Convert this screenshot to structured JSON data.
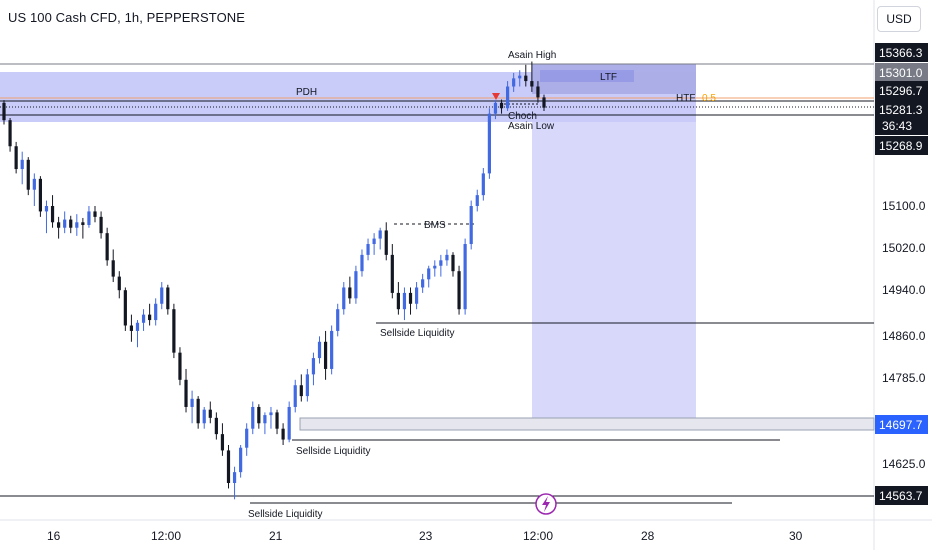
{
  "header": {
    "title": "US 100 Cash CFD, 1h, PEPPERSTONE",
    "currency": "USD"
  },
  "chart_data": {
    "type": "candlestick",
    "symbol": "US 100 Cash CFD",
    "timeframe": "1h",
    "exchange": "PEPPERSTONE",
    "y_ticks": [
      15100.0,
      15020.0,
      14940.0,
      14860.0,
      14785.0,
      14625.0
    ],
    "x_ticks": [
      "16",
      "12:00",
      "21",
      "23",
      "12:00",
      "28",
      "30"
    ],
    "price_tags": [
      {
        "value": "15366.3",
        "style": "dark"
      },
      {
        "value": "15301.0",
        "style": "gray"
      },
      {
        "value": "15296.7",
        "style": "dark"
      },
      {
        "value": "15281.3",
        "style": "dark"
      },
      {
        "value": "36:43",
        "style": "dark"
      },
      {
        "value": "15268.9",
        "style": "dark"
      },
      {
        "value": "14697.7",
        "style": "blue"
      },
      {
        "value": "14563.7",
        "style": "dark"
      }
    ],
    "annotations": {
      "asian_high": "Asain High",
      "asian_low": "Asain Low",
      "choch": "Choch",
      "ltf": "LTF",
      "htf": "HTF",
      "fib": "0.5",
      "pdh": "PDH",
      "bms": "BMS",
      "sellside_1": "Sellside Liquidity",
      "sellside_2": "Sellside Liquidity",
      "sellside_3": "Sellside Liquidity"
    },
    "colors": {
      "zone": "#b2b5f7",
      "zone_light": "#c8caf8",
      "bull": "#4169e1",
      "bear": "#131722",
      "pdh_line": "#f0a070",
      "fib": "#f7a600",
      "tag_blue": "#2962ff",
      "event_icon": "#9c27b0"
    },
    "candles": [
      [
        15290,
        15295,
        15250,
        15258
      ],
      [
        15258,
        15262,
        15200,
        15210
      ],
      [
        15210,
        15218,
        15160,
        15168
      ],
      [
        15168,
        15200,
        15140,
        15185
      ],
      [
        15185,
        15190,
        15120,
        15130
      ],
      [
        15130,
        15160,
        15100,
        15150
      ],
      [
        15150,
        15155,
        15080,
        15090
      ],
      [
        15090,
        15110,
        15050,
        15100
      ],
      [
        15100,
        15120,
        15060,
        15070
      ],
      [
        15070,
        15080,
        15040,
        15060
      ],
      [
        15060,
        15090,
        15050,
        15075
      ],
      [
        15075,
        15082,
        15050,
        15060
      ],
      [
        15060,
        15085,
        15045,
        15070
      ],
      [
        15070,
        15078,
        15040,
        15065
      ],
      [
        15065,
        15100,
        15060,
        15090
      ],
      [
        15090,
        15100,
        15070,
        15080
      ],
      [
        15080,
        15090,
        15040,
        15050
      ],
      [
        15050,
        15060,
        14990,
        15000
      ],
      [
        15000,
        15020,
        14960,
        14970
      ],
      [
        14970,
        14980,
        14930,
        14945
      ],
      [
        14945,
        14950,
        14870,
        14880
      ],
      [
        14880,
        14900,
        14850,
        14870
      ],
      [
        14870,
        14890,
        14840,
        14885
      ],
      [
        14885,
        14910,
        14870,
        14900
      ],
      [
        14900,
        14920,
        14880,
        14890
      ],
      [
        14890,
        14930,
        14880,
        14920
      ],
      [
        14920,
        14960,
        14910,
        14950
      ],
      [
        14950,
        14955,
        14900,
        14910
      ],
      [
        14910,
        14920,
        14820,
        14830
      ],
      [
        14830,
        14840,
        14770,
        14780
      ],
      [
        14780,
        14800,
        14720,
        14730
      ],
      [
        14730,
        14760,
        14700,
        14745
      ],
      [
        14745,
        14750,
        14690,
        14700
      ],
      [
        14700,
        14730,
        14690,
        14725
      ],
      [
        14725,
        14740,
        14700,
        14710
      ],
      [
        14710,
        14720,
        14670,
        14680
      ],
      [
        14680,
        14700,
        14640,
        14650
      ],
      [
        14650,
        14660,
        14580,
        14590
      ],
      [
        14590,
        14620,
        14560,
        14610
      ],
      [
        14610,
        14660,
        14600,
        14655
      ],
      [
        14655,
        14700,
        14640,
        14690
      ],
      [
        14690,
        14740,
        14680,
        14730
      ],
      [
        14730,
        14735,
        14690,
        14700
      ],
      [
        14700,
        14720,
        14680,
        14715
      ],
      [
        14715,
        14730,
        14690,
        14720
      ],
      [
        14720,
        14725,
        14680,
        14690
      ],
      [
        14690,
        14700,
        14660,
        14670
      ],
      [
        14670,
        14740,
        14665,
        14730
      ],
      [
        14730,
        14780,
        14720,
        14770
      ],
      [
        14770,
        14790,
        14740,
        14750
      ],
      [
        14750,
        14800,
        14740,
        14790
      ],
      [
        14790,
        14830,
        14770,
        14820
      ],
      [
        14820,
        14860,
        14810,
        14850
      ],
      [
        14850,
        14870,
        14780,
        14800
      ],
      [
        14800,
        14880,
        14790,
        14870
      ],
      [
        14870,
        14920,
        14860,
        14910
      ],
      [
        14910,
        14960,
        14900,
        14950
      ],
      [
        14950,
        14970,
        14920,
        14930
      ],
      [
        14930,
        14990,
        14920,
        14980
      ],
      [
        14980,
        15020,
        14970,
        15010
      ],
      [
        15010,
        15040,
        15000,
        15030
      ],
      [
        15030,
        15050,
        15010,
        15040
      ],
      [
        15040,
        15060,
        15020,
        15055
      ],
      [
        15055,
        15070,
        15000,
        15010
      ],
      [
        15010,
        15030,
        14930,
        14940
      ],
      [
        14940,
        14960,
        14900,
        14910
      ],
      [
        14910,
        14950,
        14890,
        14940
      ],
      [
        14940,
        14950,
        14900,
        14920
      ],
      [
        14920,
        14960,
        14910,
        14950
      ],
      [
        14950,
        14975,
        14940,
        14965
      ],
      [
        14965,
        14990,
        14950,
        14985
      ],
      [
        14985,
        15000,
        14970,
        14990
      ],
      [
        14990,
        15010,
        14970,
        15000
      ],
      [
        15000,
        15020,
        14990,
        15010
      ],
      [
        15010,
        15015,
        14970,
        14980
      ],
      [
        14980,
        14990,
        14900,
        14910
      ],
      [
        14910,
        15040,
        14900,
        15030
      ],
      [
        15030,
        15110,
        15020,
        15100
      ],
      [
        15100,
        15130,
        15090,
        15120
      ],
      [
        15120,
        15170,
        15110,
        15160
      ],
      [
        15160,
        15280,
        15150,
        15270
      ],
      [
        15270,
        15295,
        15260,
        15290
      ],
      [
        15290,
        15296,
        15270,
        15280
      ],
      [
        15280,
        15330,
        15275,
        15320
      ],
      [
        15320,
        15345,
        15310,
        15335
      ],
      [
        15335,
        15350,
        15320,
        15340
      ],
      [
        15340,
        15360,
        15320,
        15330
      ],
      [
        15330,
        15366,
        15310,
        15320
      ],
      [
        15320,
        15330,
        15290,
        15300
      ],
      [
        15300,
        15305,
        15275,
        15281
      ]
    ]
  }
}
